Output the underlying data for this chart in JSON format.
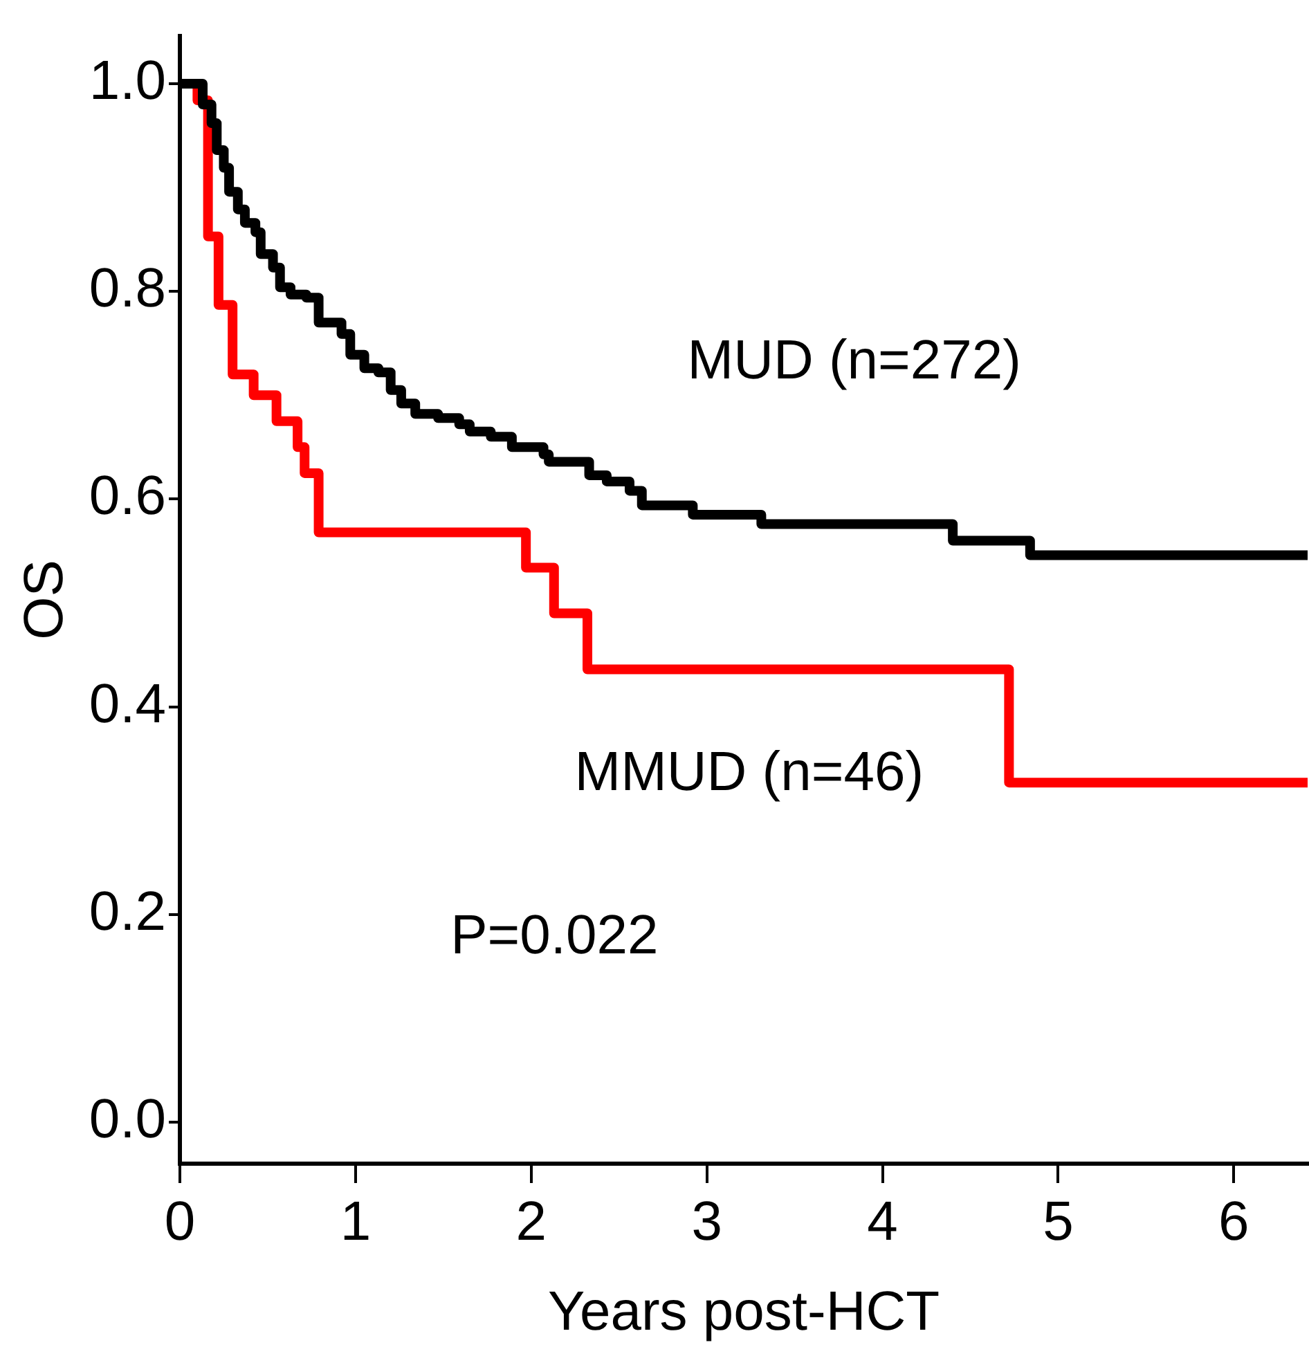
{
  "chart_data": {
    "type": "step",
    "xlabel": "Years post-HCT",
    "ylabel": "OS",
    "annotations": [
      "P=0.022"
    ],
    "xlim": [
      0,
      6.42
    ],
    "xticks": [
      0,
      1,
      2,
      3,
      4,
      5,
      6
    ],
    "ylim": [
      -0.04,
      1.046
    ],
    "yticks": [
      {
        "value": 0,
        "label": "0.0"
      },
      0.2,
      0.4,
      0.6,
      0.8,
      {
        "value": 1,
        "label": "1.0"
      }
    ],
    "grid": false,
    "legend": false,
    "marker": "none",
    "line_style": "solid",
    "series": [
      {
        "name": "MUD (n=272)",
        "color": "#000000",
        "x": [
          0,
          0.13,
          0.18,
          0.21,
          0.25,
          0.28,
          0.33,
          0.37,
          0.43,
          0.46,
          0.53,
          0.57,
          0.63,
          0.72,
          0.79,
          0.92,
          0.97,
          1.05,
          1.13,
          1.2,
          1.26,
          1.34,
          1.47,
          1.59,
          1.65,
          1.77,
          1.89,
          2.07,
          2.1,
          2.33,
          2.43,
          2.56,
          2.63,
          2.92,
          3.31,
          4.4,
          4.84,
          6.42
        ],
        "values": [
          1,
          0.98,
          0.962,
          0.936,
          0.919,
          0.896,
          0.879,
          0.866,
          0.857,
          0.836,
          0.823,
          0.804,
          0.797,
          0.794,
          0.77,
          0.759,
          0.739,
          0.726,
          0.722,
          0.705,
          0.692,
          0.682,
          0.678,
          0.672,
          0.665,
          0.66,
          0.65,
          0.643,
          0.636,
          0.623,
          0.617,
          0.608,
          0.594,
          0.585,
          0.576,
          0.56,
          0.546,
          0.546
        ]
      },
      {
        "name": "MMUD (n=46)",
        "color": "#ff0000",
        "x": [
          0,
          0.1,
          0.16,
          0.22,
          0.3,
          0.42,
          0.55,
          0.67,
          0.71,
          0.79,
          1.97,
          2.13,
          2.32,
          4.72,
          6.42
        ],
        "values": [
          1,
          0.984,
          0.853,
          0.787,
          0.72,
          0.7,
          0.675,
          0.65,
          0.625,
          0.568,
          0.534,
          0.49,
          0.436,
          0.327,
          0.327
        ]
      }
    ]
  }
}
